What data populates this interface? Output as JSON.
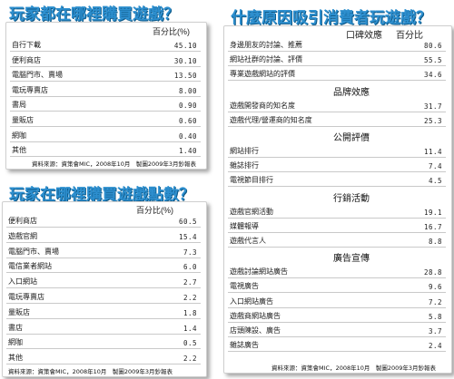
{
  "chart_data": [
    {
      "type": "table",
      "title": "玩家都在哪裡購買遊戲？",
      "column_header": "百分比(%)",
      "rows": [
        {
          "label": "自行下載",
          "value": "45.10"
        },
        {
          "label": "便利商店",
          "value": "30.10"
        },
        {
          "label": "電腦門市、賣場",
          "value": "13.50"
        },
        {
          "label": "電玩專賣店",
          "value": "8.00"
        },
        {
          "label": "書局",
          "value": "0.90"
        },
        {
          "label": "量販店",
          "value": "0.60"
        },
        {
          "label": "網咖",
          "value": "0.40"
        },
        {
          "label": "其他",
          "value": "1.40"
        }
      ],
      "source": "資料來源：資策會MIC，2008年10月　製圖2009年3月鈔報表"
    },
    {
      "type": "table",
      "title": "玩家在哪裡購買遊戲點數？",
      "column_header": "百分比(%)",
      "rows": [
        {
          "label": "便利商店",
          "value": "60.5"
        },
        {
          "label": "遊戲官網",
          "value": "15.4"
        },
        {
          "label": "電腦門市、賣場",
          "value": "7.3"
        },
        {
          "label": "電信業者網站",
          "value": "6.0"
        },
        {
          "label": "入口網站",
          "value": "2.7"
        },
        {
          "label": "電玩專賣店",
          "value": "2.2"
        },
        {
          "label": "量販店",
          "value": "1.8"
        },
        {
          "label": "書店",
          "value": "1.4"
        },
        {
          "label": "網咖",
          "value": "0.5"
        },
        {
          "label": "其他",
          "value": "2.2"
        }
      ],
      "source": "資料來源：資策會MIC，2008年10月　製圖2009年3月鈔報表"
    },
    {
      "type": "table",
      "title": "什麼原因吸引消費者玩遊戲？",
      "column_headers": [
        "口碑效應",
        "百分比"
      ],
      "groups": [
        {
          "name": "",
          "rows": [
            {
              "label": "身邊朋友的討論、推薦",
              "value": "80.6"
            },
            {
              "label": "網站社群的討論、評價",
              "value": "55.5"
            },
            {
              "label": "專業遊戲網站的評價",
              "value": "34.6"
            }
          ]
        },
        {
          "name": "品牌效應",
          "rows": [
            {
              "label": "遊戲開發商的知名度",
              "value": "31.7"
            },
            {
              "label": "遊戲代理/營運商的知名度",
              "value": "25.3"
            }
          ]
        },
        {
          "name": "公開評價",
          "rows": [
            {
              "label": "網站排行",
              "value": "11.4"
            },
            {
              "label": "雜誌排行",
              "value": "7.4"
            },
            {
              "label": "電視節目排行",
              "value": "4.5"
            }
          ]
        },
        {
          "name": "行銷活動",
          "rows": [
            {
              "label": "遊戲官網活動",
              "value": "19.1"
            },
            {
              "label": "媒體報導",
              "value": "16.7"
            },
            {
              "label": "遊戲代言人",
              "value": "8.8"
            }
          ]
        },
        {
          "name": "廣告宣傳",
          "rows": [
            {
              "label": "遊戲討論網站廣告",
              "value": "28.8"
            },
            {
              "label": "電視廣告",
              "value": "9.6"
            },
            {
              "label": "入口網站廣告",
              "value": "7.2"
            },
            {
              "label": "遊戲商網站廣告",
              "value": "5.8"
            },
            {
              "label": "店頭陳設、廣告",
              "value": "3.7"
            },
            {
              "label": "雜誌廣告",
              "value": "2.4"
            }
          ]
        }
      ],
      "source": "資料來源：資策會MIC，2008年10月　製圖2009年3月鈔報表"
    }
  ]
}
